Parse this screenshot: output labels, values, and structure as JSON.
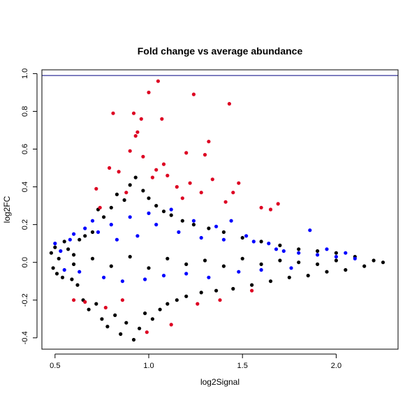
{
  "chart_data": {
    "type": "scatter",
    "title": "Fold change vs average abundance",
    "xlabel": "log2Signal",
    "ylabel": "log2FC",
    "xlim": [
      0.43,
      2.33
    ],
    "ylim": [
      -0.46,
      1.02
    ],
    "x_ticks": [
      {
        "value": 0.5,
        "label": "0.5"
      },
      {
        "value": 1.0,
        "label": "1.0"
      },
      {
        "value": 1.5,
        "label": "1.5"
      },
      {
        "value": 2.0,
        "label": "2.0"
      }
    ],
    "y_ticks": [
      {
        "value": -0.4,
        "label": "-0.4"
      },
      {
        "value": -0.2,
        "label": "-0.2"
      },
      {
        "value": 0.0,
        "label": "0.0"
      },
      {
        "value": 0.2,
        "label": "0.2"
      },
      {
        "value": 0.4,
        "label": "0.4"
      },
      {
        "value": 0.6,
        "label": "0.6"
      },
      {
        "value": 0.8,
        "label": "0.8"
      },
      {
        "value": 1.0,
        "label": "1.0"
      }
    ],
    "reference_lines": [
      {
        "orientation": "horizontal",
        "y": 0.99,
        "color": "#000080"
      }
    ],
    "grid": false,
    "legend": "none",
    "series": [
      {
        "color": "#000000",
        "points": [
          [
            0.48,
            0.05
          ],
          [
            0.49,
            -0.03
          ],
          [
            0.5,
            0.08
          ],
          [
            0.51,
            -0.06
          ],
          [
            0.52,
            0.02
          ],
          [
            0.54,
            -0.08
          ],
          [
            0.55,
            0.11
          ],
          [
            0.57,
            0.07
          ],
          [
            0.59,
            -0.09
          ],
          [
            0.6,
            0.04
          ],
          [
            0.62,
            -0.12
          ],
          [
            0.63,
            0.12
          ],
          [
            0.65,
            -0.2
          ],
          [
            0.66,
            0.14
          ],
          [
            0.68,
            -0.25
          ],
          [
            0.7,
            0.16
          ],
          [
            0.72,
            -0.22
          ],
          [
            0.73,
            0.28
          ],
          [
            0.75,
            -0.3
          ],
          [
            0.76,
            0.24
          ],
          [
            0.78,
            -0.34
          ],
          [
            0.8,
            0.29
          ],
          [
            0.82,
            -0.28
          ],
          [
            0.83,
            0.36
          ],
          [
            0.85,
            -0.38
          ],
          [
            0.87,
            0.33
          ],
          [
            0.88,
            -0.32
          ],
          [
            0.9,
            0.41
          ],
          [
            0.92,
            -0.41
          ],
          [
            0.93,
            0.45
          ],
          [
            0.95,
            -0.35
          ],
          [
            0.97,
            0.38
          ],
          [
            0.98,
            -0.27
          ],
          [
            1.0,
            0.34
          ],
          [
            1.02,
            -0.3
          ],
          [
            1.04,
            0.3
          ],
          [
            1.06,
            -0.25
          ],
          [
            1.08,
            0.27
          ],
          [
            1.1,
            -0.22
          ],
          [
            1.12,
            0.25
          ],
          [
            1.15,
            -0.2
          ],
          [
            1.18,
            0.22
          ],
          [
            1.2,
            -0.18
          ],
          [
            1.24,
            0.2
          ],
          [
            1.28,
            -0.16
          ],
          [
            1.32,
            0.18
          ],
          [
            1.36,
            -0.15
          ],
          [
            1.4,
            0.16
          ],
          [
            1.45,
            -0.14
          ],
          [
            1.5,
            0.13
          ],
          [
            1.55,
            -0.12
          ],
          [
            1.6,
            0.11
          ],
          [
            1.65,
            -0.1
          ],
          [
            1.7,
            0.09
          ],
          [
            1.75,
            -0.08
          ],
          [
            1.8,
            0.07
          ],
          [
            1.85,
            -0.07
          ],
          [
            1.9,
            0.06
          ],
          [
            1.95,
            -0.05
          ],
          [
            2.0,
            0.05
          ],
          [
            2.05,
            -0.04
          ],
          [
            2.1,
            0.03
          ],
          [
            2.15,
            -0.02
          ],
          [
            2.2,
            0.01
          ],
          [
            2.25,
            0.0
          ],
          [
            0.6,
            -0.01
          ],
          [
            0.7,
            0.02
          ],
          [
            0.8,
            -0.02
          ],
          [
            0.9,
            0.03
          ],
          [
            1.0,
            -0.03
          ],
          [
            1.1,
            0.02
          ],
          [
            1.2,
            -0.01
          ],
          [
            1.3,
            0.01
          ],
          [
            1.4,
            -0.02
          ],
          [
            1.5,
            0.02
          ],
          [
            1.6,
            -0.01
          ],
          [
            1.7,
            0.01
          ],
          [
            1.8,
            0.0
          ],
          [
            1.9,
            -0.01
          ],
          [
            2.0,
            0.01
          ]
        ]
      },
      {
        "color": "#0000ff",
        "points": [
          [
            0.5,
            0.1
          ],
          [
            0.53,
            0.06
          ],
          [
            0.55,
            -0.04
          ],
          [
            0.58,
            0.12
          ],
          [
            0.6,
            0.15
          ],
          [
            0.63,
            -0.05
          ],
          [
            0.66,
            0.18
          ],
          [
            0.7,
            0.22
          ],
          [
            0.73,
            0.16
          ],
          [
            0.76,
            -0.08
          ],
          [
            0.8,
            0.2
          ],
          [
            0.83,
            0.12
          ],
          [
            0.86,
            -0.1
          ],
          [
            0.9,
            0.24
          ],
          [
            0.94,
            0.14
          ],
          [
            0.98,
            -0.09
          ],
          [
            1.0,
            0.26
          ],
          [
            1.04,
            0.2
          ],
          [
            1.08,
            -0.07
          ],
          [
            1.12,
            0.28
          ],
          [
            1.16,
            0.16
          ],
          [
            1.2,
            -0.06
          ],
          [
            1.24,
            0.22
          ],
          [
            1.28,
            0.13
          ],
          [
            1.32,
            -0.08
          ],
          [
            1.36,
            0.19
          ],
          [
            1.4,
            0.12
          ],
          [
            1.44,
            0.22
          ],
          [
            1.48,
            -0.05
          ],
          [
            1.52,
            0.14
          ],
          [
            1.56,
            0.11
          ],
          [
            1.6,
            -0.04
          ],
          [
            1.64,
            0.1
          ],
          [
            1.68,
            0.07
          ],
          [
            1.72,
            0.06
          ],
          [
            1.76,
            -0.03
          ],
          [
            1.8,
            0.05
          ],
          [
            1.86,
            0.17
          ],
          [
            1.9,
            0.04
          ],
          [
            1.95,
            0.07
          ],
          [
            2.0,
            0.03
          ],
          [
            2.05,
            0.05
          ],
          [
            2.1,
            0.02
          ]
        ]
      },
      {
        "color": "#dd0022",
        "points": [
          [
            0.6,
            -0.2
          ],
          [
            0.66,
            -0.21
          ],
          [
            0.72,
            0.39
          ],
          [
            0.74,
            0.29
          ],
          [
            0.77,
            -0.24
          ],
          [
            0.79,
            0.5
          ],
          [
            0.81,
            0.79
          ],
          [
            0.84,
            0.48
          ],
          [
            0.86,
            -0.2
          ],
          [
            0.88,
            0.37
          ],
          [
            0.9,
            0.59
          ],
          [
            0.92,
            0.79
          ],
          [
            0.93,
            0.67
          ],
          [
            0.94,
            0.69
          ],
          [
            0.96,
            0.76
          ],
          [
            0.97,
            0.56
          ],
          [
            0.99,
            -0.37
          ],
          [
            1.0,
            0.9
          ],
          [
            1.02,
            0.45
          ],
          [
            1.04,
            0.49
          ],
          [
            1.05,
            0.96
          ],
          [
            1.07,
            0.76
          ],
          [
            1.08,
            0.52
          ],
          [
            1.1,
            0.46
          ],
          [
            1.12,
            -0.33
          ],
          [
            1.15,
            0.4
          ],
          [
            1.18,
            0.34
          ],
          [
            1.2,
            0.58
          ],
          [
            1.22,
            0.42
          ],
          [
            1.24,
            0.89
          ],
          [
            1.26,
            -0.22
          ],
          [
            1.28,
            0.37
          ],
          [
            1.3,
            0.57
          ],
          [
            1.32,
            0.64
          ],
          [
            1.34,
            0.44
          ],
          [
            1.38,
            -0.2
          ],
          [
            1.41,
            0.32
          ],
          [
            1.43,
            0.84
          ],
          [
            1.45,
            0.37
          ],
          [
            1.48,
            0.42
          ],
          [
            1.55,
            -0.15
          ],
          [
            1.6,
            0.29
          ],
          [
            1.65,
            0.28
          ],
          [
            1.69,
            0.31
          ]
        ]
      }
    ]
  }
}
